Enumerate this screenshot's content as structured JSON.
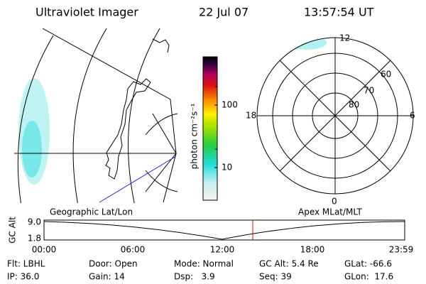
{
  "header": {
    "title": "Ultraviolet Imager",
    "date": "22 Jul 07",
    "time": "13:57:54 UT"
  },
  "colorbar": {
    "label": "photon cm⁻²s⁻¹",
    "ticks": [
      "100",
      "10"
    ]
  },
  "polar": {
    "mlt_labels": [
      "12",
      "18",
      "6",
      "0"
    ],
    "lat_labels": [
      "60",
      "70",
      "80"
    ]
  },
  "timeline": {
    "left_label": "Geographic Lat/Lon",
    "right_label": "Apex MLat/MLT",
    "y_label": "GC Alt",
    "y_ticks": [
      "9.0",
      "1.8"
    ],
    "x_ticks": [
      "00:00",
      "06:00",
      "12:00",
      "18:00",
      "23:59"
    ]
  },
  "footer": {
    "rows": [
      [
        "Flt: LBHL",
        "Door: Open",
        "Mode: Normal",
        "GC Alt: 5.4 Re",
        "GLat: -66.6"
      ],
      [
        "IP: 36.0",
        "Gain: 14",
        "Dsp:   3.9",
        "Seq: 39",
        "GLon:  17.6"
      ]
    ]
  }
}
